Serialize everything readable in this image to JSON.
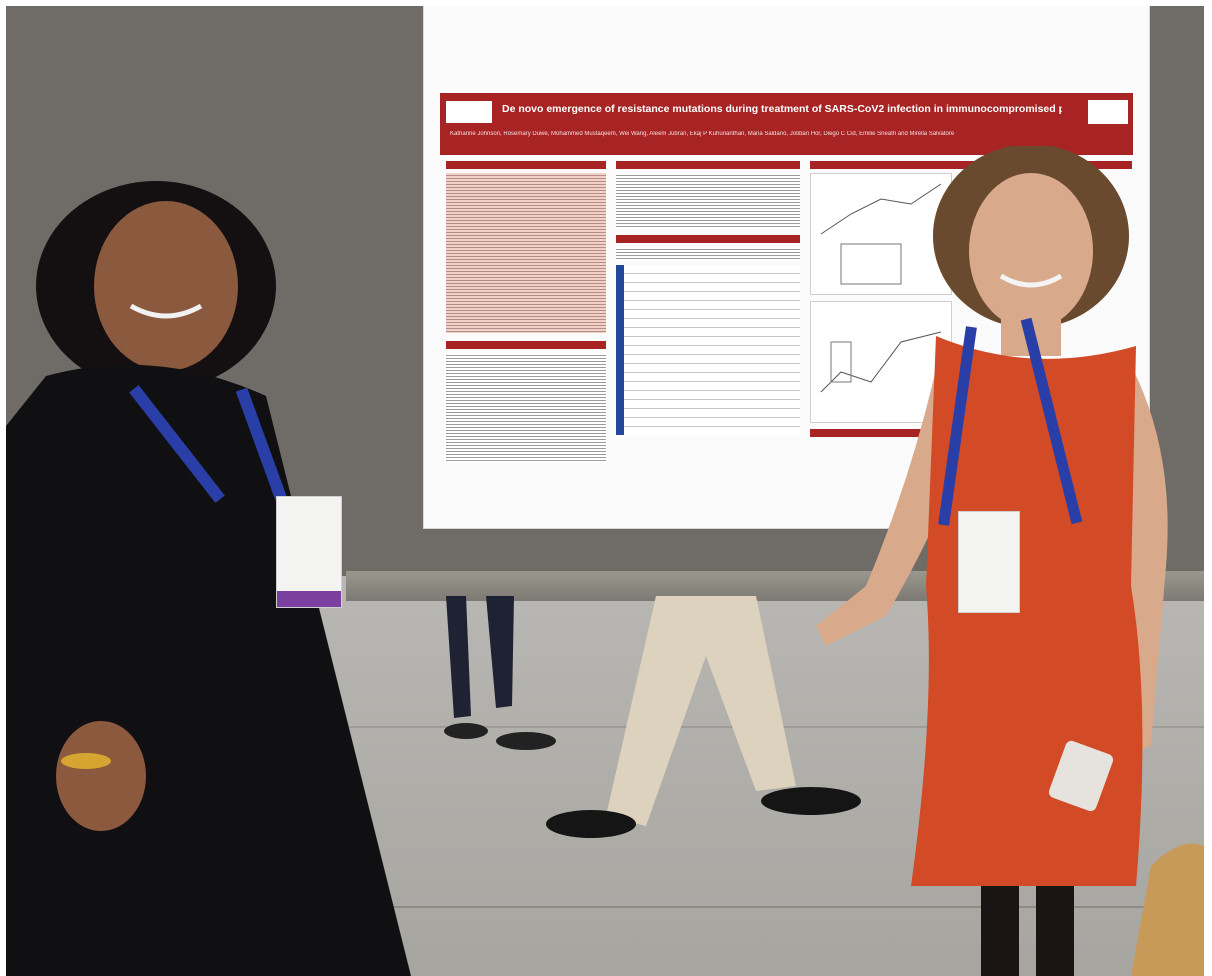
{
  "poster": {
    "title": "De novo emergence of resistance mutations during treatment of SARS-CoV2 infection in immunocompromised patients",
    "authors": "Katharine Johnson, Rosemary Duwe, Mohammed Mustaqeem, Wei Wang, Aleem Jubran, Ekaj P Kuhunanthan, Maria Saldano, Jotiban Hor, Diego C Cid, Emilie Sneath and Mirella Salvatore",
    "accent_color": "#a82424"
  },
  "scene": {
    "description_icon": "conference-poster-photo"
  }
}
